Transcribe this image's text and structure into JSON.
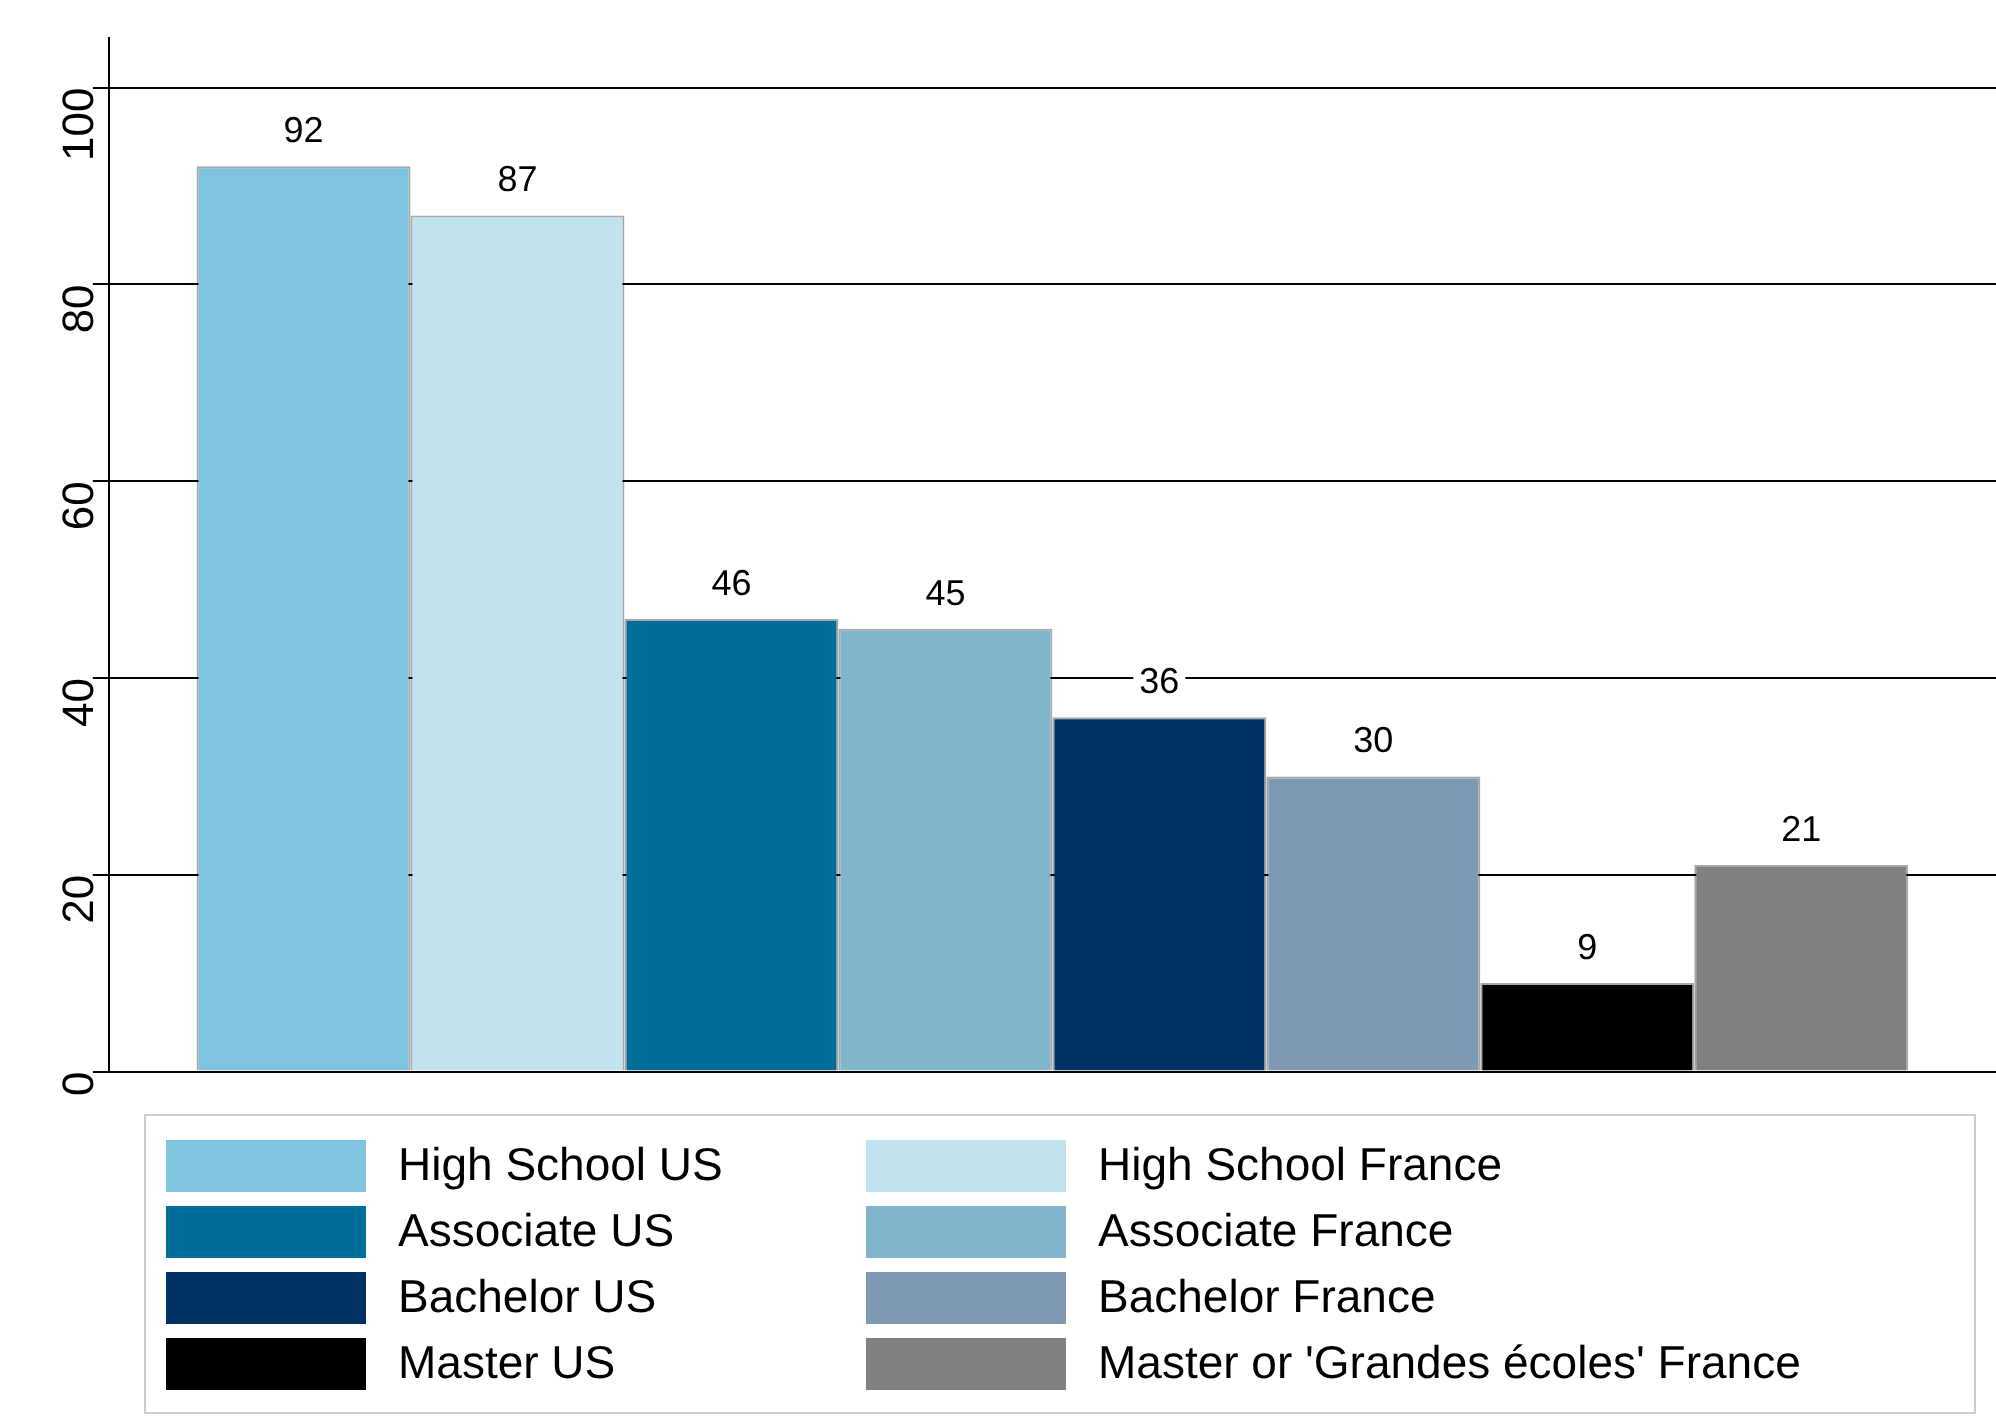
{
  "chart_data": {
    "type": "bar",
    "categories": [
      null
    ],
    "series": [
      {
        "name": "High School US",
        "color": "#7ec4de",
        "values": [
          92
        ]
      },
      {
        "name": "High School France",
        "color": "#c0e3ef",
        "values": [
          87
        ]
      },
      {
        "name": "Associate US",
        "color": "#006e98",
        "values": [
          46
        ]
      },
      {
        "name": "Associate France",
        "color": "#80b5cb",
        "values": [
          45
        ]
      },
      {
        "name": "Bachelor US",
        "color": "#003363",
        "values": [
          36
        ]
      },
      {
        "name": "Bachelor France",
        "color": "#7f99b3",
        "values": [
          30
        ]
      },
      {
        "name": "Master US",
        "color": "#000000",
        "values": [
          9
        ]
      },
      {
        "name": "Master or 'Grandes écoles' France",
        "color": "#808080",
        "values": [
          21
        ]
      }
    ],
    "ylim": [
      0,
      105
    ],
    "yticks": [
      0,
      20,
      40,
      60,
      80,
      100
    ],
    "grid": "y",
    "legend": "bottom",
    "data_labels": true
  }
}
